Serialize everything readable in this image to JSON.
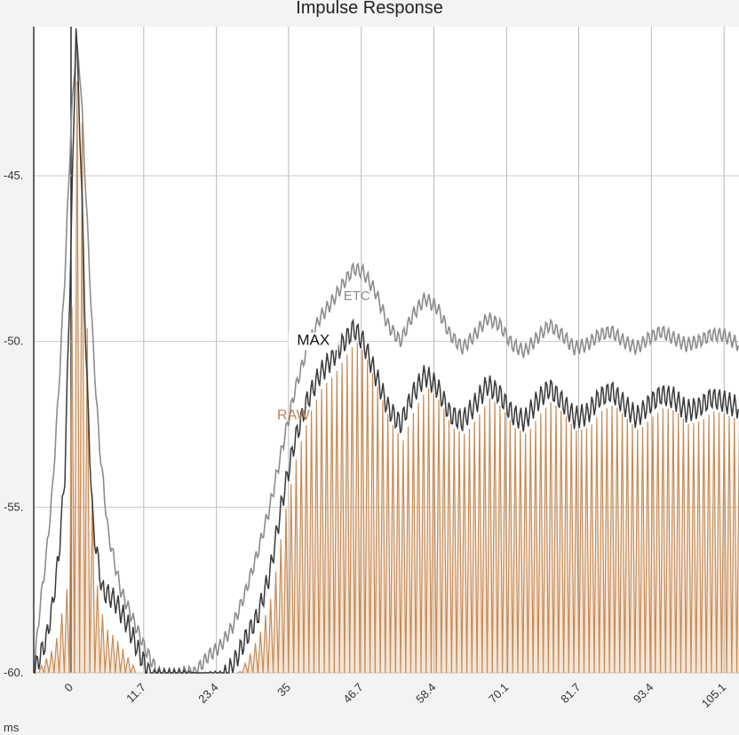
{
  "chart_data": {
    "type": "line",
    "title": "Impulse Response",
    "xlabel": "ms",
    "ylabel": "",
    "xlim": [
      -6,
      107.5
    ],
    "ylim": [
      -60,
      -40.5
    ],
    "x_ticks": [
      "0",
      "11.7",
      "23.4",
      "35",
      "46.7",
      "58.4",
      "70.1",
      "81.7",
      "93.4",
      "105.1"
    ],
    "x_tick_values": [
      0,
      11.7,
      23.4,
      35,
      46.7,
      58.4,
      70.1,
      81.7,
      93.4,
      105.1
    ],
    "y_ticks": [
      "-45.",
      "-50.",
      "-55.",
      "-60."
    ],
    "y_tick_values": [
      -45,
      -50,
      -55,
      -60
    ],
    "grid": true,
    "series": [
      {
        "name": "ETC",
        "color": "#8c8c8c",
        "points": [
          [
            -6,
            -60
          ],
          [
            -5,
            -58
          ],
          [
            -4,
            -56.5
          ],
          [
            -3,
            -54.5
          ],
          [
            -2,
            -51.5
          ],
          [
            -1,
            -48
          ],
          [
            0,
            -43.5
          ],
          [
            0.8,
            -41
          ],
          [
            1.5,
            -42
          ],
          [
            2.5,
            -46
          ],
          [
            3.5,
            -50
          ],
          [
            4.5,
            -53
          ],
          [
            6,
            -55.8
          ],
          [
            8,
            -57.5
          ],
          [
            10,
            -58.4
          ],
          [
            12,
            -59.3
          ],
          [
            14,
            -60
          ],
          [
            16,
            -60.2
          ],
          [
            18,
            -60
          ],
          [
            20,
            -60
          ],
          [
            22,
            -59.5
          ],
          [
            24,
            -59.2
          ],
          [
            26,
            -58.6
          ],
          [
            28,
            -57.6
          ],
          [
            30,
            -56.4
          ],
          [
            32,
            -55
          ],
          [
            34,
            -53.2
          ],
          [
            36,
            -51.5
          ],
          [
            38,
            -50.2
          ],
          [
            40,
            -49.3
          ],
          [
            42,
            -48.8
          ],
          [
            44,
            -48.2
          ],
          [
            45.5,
            -47.8
          ],
          [
            47,
            -47.9
          ],
          [
            49,
            -48.5
          ],
          [
            51,
            -49.5
          ],
          [
            53,
            -50
          ],
          [
            55,
            -49.2
          ],
          [
            57,
            -48.7
          ],
          [
            59,
            -49
          ],
          [
            61,
            -49.8
          ],
          [
            63,
            -50.2
          ],
          [
            65,
            -49.8
          ],
          [
            67,
            -49.3
          ],
          [
            69,
            -49.5
          ],
          [
            71,
            -50.1
          ],
          [
            73,
            -50.3
          ],
          [
            75,
            -49.9
          ],
          [
            77,
            -49.5
          ],
          [
            79,
            -49.8
          ],
          [
            81,
            -50.2
          ],
          [
            83,
            -50.1
          ],
          [
            85,
            -49.8
          ],
          [
            87,
            -49.7
          ],
          [
            89,
            -50
          ],
          [
            91,
            -50.2
          ],
          [
            93,
            -49.9
          ],
          [
            95,
            -49.7
          ],
          [
            97,
            -49.9
          ],
          [
            99,
            -50.1
          ],
          [
            101,
            -50
          ],
          [
            103,
            -49.8
          ],
          [
            105,
            -49.8
          ],
          [
            107.5,
            -50.1
          ]
        ]
      },
      {
        "name": "MAX",
        "color": "#3a3a3a",
        "points": [
          [
            -6,
            -60
          ],
          [
            -4,
            -59
          ],
          [
            -3,
            -58
          ],
          [
            -2,
            -56.5
          ],
          [
            -1,
            -54
          ],
          [
            0,
            -47
          ],
          [
            0.8,
            -40.5
          ],
          [
            1.5,
            -44
          ],
          [
            2.5,
            -51
          ],
          [
            3.5,
            -55.5
          ],
          [
            5,
            -57.5
          ],
          [
            7,
            -57.8
          ],
          [
            9,
            -58.5
          ],
          [
            11,
            -59.4
          ],
          [
            13,
            -60.2
          ],
          [
            24,
            -60.3
          ],
          [
            26,
            -59.8
          ],
          [
            28,
            -59
          ],
          [
            30,
            -58.3
          ],
          [
            32,
            -57
          ],
          [
            34,
            -54.8
          ],
          [
            36,
            -53
          ],
          [
            38,
            -51.8
          ],
          [
            40,
            -51
          ],
          [
            42,
            -50.5
          ],
          [
            44,
            -50
          ],
          [
            45.5,
            -49.6
          ],
          [
            47,
            -50
          ],
          [
            49,
            -51
          ],
          [
            51,
            -52
          ],
          [
            53,
            -52.5
          ],
          [
            55,
            -51.6
          ],
          [
            57,
            -51
          ],
          [
            59,
            -51.4
          ],
          [
            61,
            -52.2
          ],
          [
            63,
            -52.4
          ],
          [
            65,
            -51.9
          ],
          [
            67,
            -51.3
          ],
          [
            69,
            -51.6
          ],
          [
            71,
            -52.2
          ],
          [
            73,
            -52.4
          ],
          [
            75,
            -51.8
          ],
          [
            77,
            -51.4
          ],
          [
            79,
            -51.8
          ],
          [
            81,
            -52.3
          ],
          [
            83,
            -52.2
          ],
          [
            85,
            -51.7
          ],
          [
            87,
            -51.5
          ],
          [
            89,
            -51.9
          ],
          [
            91,
            -52.3
          ],
          [
            93,
            -51.9
          ],
          [
            95,
            -51.6
          ],
          [
            97,
            -51.7
          ],
          [
            99,
            -52.1
          ],
          [
            101,
            -52
          ],
          [
            103,
            -51.7
          ],
          [
            105,
            -51.8
          ],
          [
            107.5,
            -52
          ]
        ]
      },
      {
        "name": "RAW",
        "color": "#c98a55",
        "points": [
          [
            -6,
            -60
          ],
          [
            -3,
            -59.2
          ],
          [
            -1,
            -57.4
          ],
          [
            0,
            -46
          ],
          [
            0.8,
            -40.5
          ],
          [
            1.5,
            -44
          ],
          [
            2.5,
            -52
          ],
          [
            3.5,
            -57
          ],
          [
            5,
            -58.6
          ],
          [
            7,
            -59
          ],
          [
            9,
            -59.6
          ],
          [
            11,
            -60.2
          ],
          [
            26,
            -60.2
          ],
          [
            28,
            -59.6
          ],
          [
            30,
            -58.8
          ],
          [
            32,
            -57.6
          ],
          [
            34,
            -55.2
          ],
          [
            36,
            -53.4
          ],
          [
            38,
            -52.2
          ],
          [
            40,
            -51.4
          ],
          [
            42,
            -51
          ],
          [
            44,
            -50.4
          ],
          [
            45.5,
            -50
          ],
          [
            47,
            -50.4
          ],
          [
            49,
            -51.4
          ],
          [
            51,
            -52.4
          ],
          [
            53,
            -53
          ],
          [
            55,
            -52
          ],
          [
            57,
            -51.4
          ],
          [
            59,
            -51.8
          ],
          [
            61,
            -52.6
          ],
          [
            63,
            -52.8
          ],
          [
            65,
            -52.3
          ],
          [
            67,
            -51.7
          ],
          [
            69,
            -52
          ],
          [
            71,
            -52.6
          ],
          [
            73,
            -52.8
          ],
          [
            75,
            -52.2
          ],
          [
            77,
            -51.8
          ],
          [
            79,
            -52.2
          ],
          [
            81,
            -52.7
          ],
          [
            83,
            -52.6
          ],
          [
            85,
            -52.1
          ],
          [
            87,
            -51.9
          ],
          [
            89,
            -52.3
          ],
          [
            91,
            -52.7
          ],
          [
            93,
            -52.3
          ],
          [
            95,
            -52
          ],
          [
            97,
            -52.1
          ],
          [
            99,
            -52.5
          ],
          [
            101,
            -52.4
          ],
          [
            103,
            -52.1
          ],
          [
            105,
            -52.2
          ],
          [
            107.5,
            -52.4
          ]
        ]
      }
    ]
  }
}
